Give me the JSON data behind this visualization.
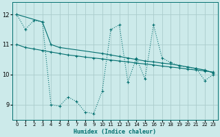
{
  "bg_color": "#cceaea",
  "line_color": "#006e6e",
  "grid_color": "#aacccc",
  "xlabel": "Humidex (Indice chaleur)",
  "xlim": [
    -0.5,
    23.5
  ],
  "ylim": [
    8.5,
    12.4
  ],
  "xticks": [
    0,
    1,
    2,
    3,
    4,
    5,
    6,
    7,
    8,
    9,
    10,
    11,
    12,
    13,
    14,
    15,
    16,
    17,
    18,
    19,
    20,
    21,
    22,
    23
  ],
  "yticks": [
    9,
    10,
    11,
    12
  ],
  "line1_x": [
    0,
    1,
    2,
    3,
    4,
    5,
    6,
    7,
    8,
    9,
    10,
    11,
    12,
    13,
    14,
    15,
    16,
    17,
    18,
    19,
    20,
    21,
    22,
    23
  ],
  "line1_y": [
    12.0,
    11.5,
    11.8,
    11.75,
    9.0,
    8.95,
    9.25,
    9.1,
    8.75,
    8.7,
    9.45,
    11.5,
    11.65,
    9.75,
    10.55,
    9.85,
    11.65,
    10.55,
    10.4,
    10.3,
    10.25,
    10.2,
    9.8,
    10.0
  ],
  "line2_x": [
    0,
    1,
    2,
    3,
    4,
    5,
    6,
    7,
    8,
    9,
    10,
    11,
    12,
    13,
    14,
    15,
    16,
    17,
    18,
    19,
    20,
    21,
    22,
    23
  ],
  "line2_y": [
    11.0,
    10.9,
    10.85,
    10.8,
    10.75,
    10.7,
    10.65,
    10.62,
    10.58,
    10.55,
    10.52,
    10.48,
    10.45,
    10.42,
    10.38,
    10.35,
    10.32,
    10.28,
    10.25,
    10.22,
    10.18,
    10.15,
    10.12,
    10.08
  ],
  "line3_x": [
    0,
    3,
    4,
    5,
    10,
    11,
    12,
    13,
    14,
    15,
    16,
    17,
    18,
    19,
    20,
    21,
    22,
    23
  ],
  "line3_y": [
    12.0,
    11.75,
    11.0,
    10.9,
    10.7,
    10.65,
    10.6,
    10.55,
    10.5,
    10.45,
    10.42,
    10.38,
    10.35,
    10.3,
    10.25,
    10.2,
    10.15,
    10.05
  ]
}
